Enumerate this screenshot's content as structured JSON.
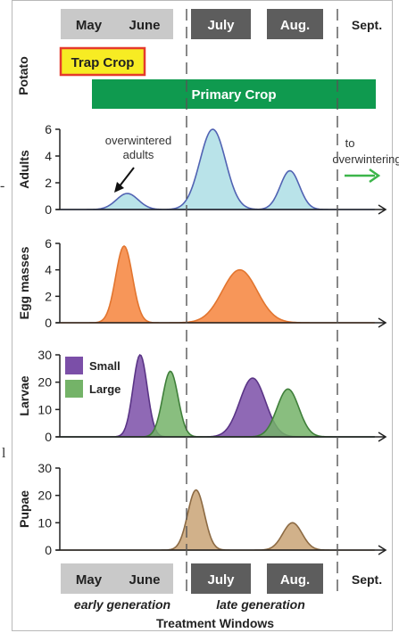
{
  "months": {
    "top": [
      {
        "label": "May",
        "fill": "#c9c9c9",
        "text": "#222222"
      },
      {
        "label": "June",
        "fill": "#c9c9c9",
        "text": "#222222"
      },
      {
        "label": "July",
        "fill": "#5d5d5d",
        "text": "#ffffff"
      },
      {
        "label": "Aug.",
        "fill": "#5d5d5d",
        "text": "#ffffff"
      },
      {
        "label": "Sept.",
        "fill": "none",
        "text": "#222222"
      }
    ],
    "bottom": [
      {
        "label": "May",
        "fill": "#c9c9c9",
        "text": "#222222"
      },
      {
        "label": "June",
        "fill": "#c9c9c9",
        "text": "#222222"
      },
      {
        "label": "July",
        "fill": "#5d5d5d",
        "text": "#ffffff"
      },
      {
        "label": "Aug.",
        "fill": "#5d5d5d",
        "text": "#ffffff"
      },
      {
        "label": "Sept.",
        "fill": "none",
        "text": "#222222"
      }
    ]
  },
  "potato": {
    "row_label": "Potato",
    "trap_crop": "Trap Crop",
    "primary_crop": "Primary Crop",
    "trap_fill": "#f7ec23",
    "trap_border": "#e53a2c",
    "primary_fill": "#0f9a4f"
  },
  "generation_labels": {
    "early": "early generation",
    "late": "late generation",
    "footer": "Treatment Windows"
  },
  "side_marks": [
    "-",
    "l"
  ],
  "chart_data": [
    {
      "type": "area",
      "ylabel": "Adults",
      "yticks": [
        0,
        2,
        4,
        6
      ],
      "ylim": [
        0,
        6
      ],
      "x_months": [
        "May",
        "June",
        "July",
        "Aug.",
        "Sept."
      ],
      "series": [
        {
          "color": "#b9e3e9",
          "stroke": "#5163b3",
          "peaks": [
            {
              "month": 1.05,
              "value": 1.2,
              "width": 0.17
            },
            {
              "month": 2.38,
              "value": 6.0,
              "width": 0.2
            },
            {
              "month": 3.58,
              "value": 2.9,
              "width": 0.15
            }
          ]
        }
      ],
      "annotations": [
        {
          "text": "overwintered\nadults"
        },
        {
          "text": "to\noverwintering"
        }
      ]
    },
    {
      "type": "area",
      "ylabel": "Egg masses",
      "yticks": [
        0,
        2,
        4,
        6
      ],
      "ylim": [
        0,
        6
      ],
      "series": [
        {
          "color": "#f79659",
          "stroke": "#e2752f",
          "peaks": [
            {
              "month": 1.0,
              "value": 5.8,
              "width": 0.13
            },
            {
              "month": 2.8,
              "value": 4.0,
              "width": 0.27
            }
          ]
        }
      ]
    },
    {
      "type": "area",
      "ylabel": "Larvae",
      "yticks": [
        0,
        10,
        20,
        30
      ],
      "ylim": [
        0,
        30
      ],
      "series": [
        {
          "name": "Small",
          "color": "#7b4fa8",
          "stroke": "#5a3486",
          "peaks": [
            {
              "month": 1.25,
              "value": 30,
              "width": 0.11
            },
            {
              "month": 3.0,
              "value": 21.5,
              "width": 0.2
            }
          ]
        },
        {
          "name": "Large",
          "color": "#74b368",
          "stroke": "#3f7f3a",
          "peaks": [
            {
              "month": 1.72,
              "value": 24,
              "width": 0.12
            },
            {
              "month": 3.55,
              "value": 17.5,
              "width": 0.17
            }
          ]
        }
      ]
    },
    {
      "type": "area",
      "ylabel": "Pupae",
      "yticks": [
        0,
        10,
        20,
        30
      ],
      "ylim": [
        0,
        30
      ],
      "series": [
        {
          "color": "#d1b18a",
          "stroke": "#8c6a43",
          "peaks": [
            {
              "month": 2.12,
              "value": 22,
              "width": 0.13
            },
            {
              "month": 3.62,
              "value": 10,
              "width": 0.15
            }
          ]
        }
      ]
    }
  ]
}
